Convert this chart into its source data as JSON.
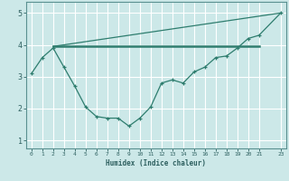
{
  "xlabel": "Humidex (Indice chaleur)",
  "bg_color": "#cce8e8",
  "grid_color": "#ffffff",
  "line_color": "#2e7d6e",
  "xlim": [
    -0.5,
    23.5
  ],
  "ylim": [
    0.75,
    5.35
  ],
  "xticks": [
    0,
    1,
    2,
    3,
    4,
    5,
    6,
    7,
    8,
    9,
    10,
    11,
    12,
    13,
    14,
    15,
    16,
    17,
    18,
    19,
    20,
    21,
    23
  ],
  "yticks": [
    1,
    2,
    3,
    4,
    5
  ],
  "line1_x": [
    0,
    1,
    2,
    3,
    4,
    5,
    6,
    7,
    8,
    9,
    10,
    11,
    12,
    13,
    14,
    15,
    16,
    17,
    18,
    19,
    20,
    21,
    23
  ],
  "line1_y": [
    3.1,
    3.6,
    3.9,
    3.3,
    2.7,
    2.05,
    1.75,
    1.7,
    1.7,
    1.45,
    1.7,
    2.05,
    2.8,
    2.9,
    2.8,
    3.15,
    3.3,
    3.6,
    3.65,
    3.9,
    4.2,
    4.3,
    5.0
  ],
  "line2_x": [
    2,
    21
  ],
  "line2_y": [
    3.95,
    3.95
  ],
  "line3_x": [
    2,
    23
  ],
  "line3_y": [
    3.95,
    5.0
  ]
}
